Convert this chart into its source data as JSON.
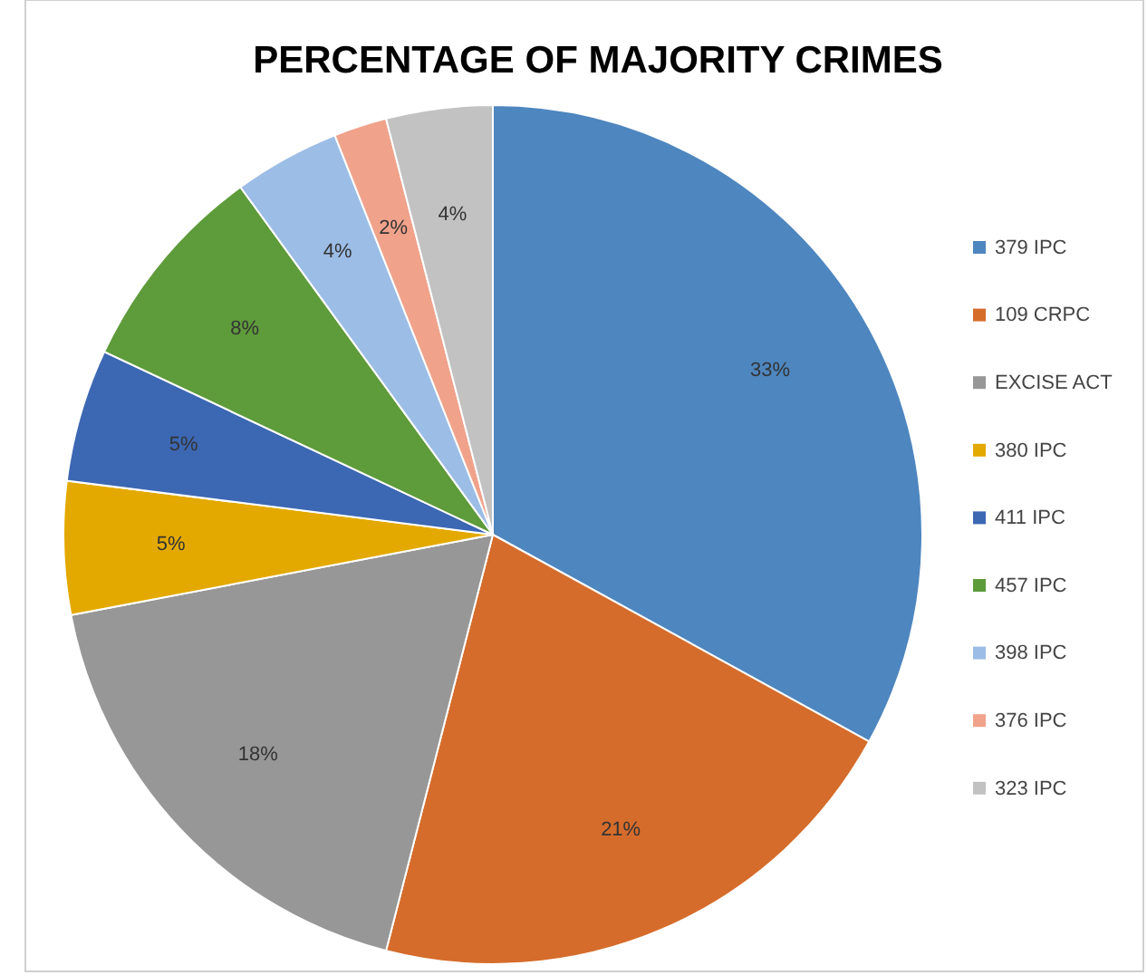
{
  "chart_data": {
    "type": "pie",
    "title": "PERCENTAGE  OF MAJORITY CRIMES",
    "categories": [
      "379 IPC",
      "109 CRPC",
      "EXCISE ACT",
      "380 IPC",
      "411 IPC",
      "457 IPC",
      "398 IPC",
      "376 IPC",
      "323 IPC"
    ],
    "values": [
      33,
      21,
      18,
      5,
      5,
      8,
      4,
      2,
      4
    ],
    "value_labels": [
      "33%",
      "21%",
      "18%",
      "5%",
      "5%",
      "8%",
      "4%",
      "2%",
      "4%"
    ],
    "colors": [
      "#4e86bf",
      "#d56c2b",
      "#979797",
      "#e4a900",
      "#3c67b3",
      "#5e9b3b",
      "#9cbde6",
      "#f0a28b",
      "#c2c2c2"
    ],
    "legend": "right"
  }
}
